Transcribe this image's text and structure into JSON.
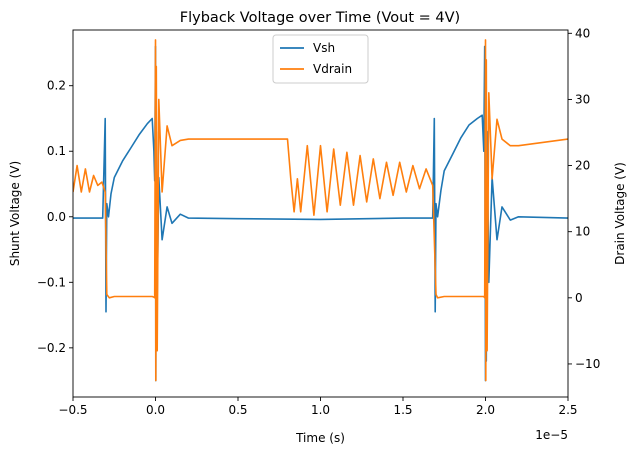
{
  "chart_data": {
    "type": "line",
    "title": "Flyback Voltage over Time (Vout = 4V)",
    "xlabel": "Time (s)",
    "x_offset_label": "1e−5",
    "xlim": [
      -5e-06,
      2.5e-05
    ],
    "x_ticks": [
      -5e-06,
      0,
      5e-06,
      1e-05,
      1.5e-05,
      2e-05,
      2.5e-05
    ],
    "x_tick_labels": [
      "−0.5",
      "0.0",
      "0.5",
      "1.0",
      "1.5",
      "2.0",
      "2.5"
    ],
    "y_left": {
      "label": "Shunt Voltage (V)",
      "lim": [
        -0.275,
        0.285
      ],
      "ticks": [
        -0.2,
        -0.1,
        0.0,
        0.1,
        0.2
      ],
      "tick_labels": [
        "−0.2",
        "−0.1",
        "0.0",
        "0.1",
        "0.2"
      ]
    },
    "y_right": {
      "label": "Drain Voltage (V)",
      "lim": [
        -15,
        40.5
      ],
      "ticks": [
        -10,
        0,
        10,
        20,
        30,
        40
      ],
      "tick_labels": [
        "−10",
        "0",
        "10",
        "20",
        "30",
        "40"
      ]
    },
    "grid": false,
    "legend_position": "top-center",
    "series": [
      {
        "name": "Vsh",
        "axis": "left",
        "color": "#1f77b4",
        "x": [
          -5e-06,
          -3.2e-06,
          -3.05e-06,
          -3e-06,
          -2.95e-06,
          -2.85e-06,
          -2.7e-06,
          -2.5e-06,
          -2e-06,
          -1.5e-06,
          -1e-06,
          -5e-07,
          -2e-07,
          -1e-07,
          -5e-08,
          0,
          2e-08,
          5e-08,
          1e-07,
          2e-07,
          4e-07,
          7e-07,
          1e-06,
          1.5e-06,
          2e-06,
          5e-06,
          1e-05,
          1.5e-05,
          1.68e-05,
          1.69e-05,
          1.695e-05,
          1.7e-05,
          1.71e-05,
          1.73e-05,
          1.75e-05,
          1.8e-05,
          1.85e-05,
          1.9e-05,
          1.95e-05,
          1.98e-05,
          1.99e-05,
          1.995e-05,
          2e-05,
          2.002e-05,
          2.005e-05,
          2.01e-05,
          2.02e-05,
          2.04e-05,
          2.07e-05,
          2.1e-05,
          2.15e-05,
          2.2e-05,
          2.5e-05
        ],
        "y": [
          -0.002,
          -0.002,
          0.15,
          -0.145,
          0.02,
          0.0,
          0.035,
          0.06,
          0.085,
          0.105,
          0.125,
          0.142,
          0.15,
          0.1,
          0.055,
          0.26,
          -0.25,
          0.13,
          -0.12,
          0.06,
          -0.035,
          0.015,
          -0.01,
          0.004,
          -0.002,
          -0.003,
          -0.004,
          -0.002,
          -0.002,
          0.15,
          -0.145,
          0.02,
          0.0,
          0.04,
          0.07,
          0.095,
          0.12,
          0.14,
          0.15,
          0.155,
          0.1,
          0.26,
          -0.25,
          0.2,
          -0.22,
          0.13,
          -0.1,
          0.06,
          -0.035,
          0.015,
          -0.005,
          0.0,
          -0.002
        ]
      },
      {
        "name": "Vdrain",
        "axis": "right",
        "color": "#ff7f0e",
        "x": [
          -5e-06,
          -4.75e-06,
          -4.5e-06,
          -4.25e-06,
          -4e-06,
          -3.75e-06,
          -3.5e-06,
          -3.25e-06,
          -3.05e-06,
          -2.95e-06,
          -2.8e-06,
          -2.5e-06,
          -1e-06,
          -2e-07,
          -1e-07,
          -5e-08,
          0,
          2e-08,
          5e-08,
          1e-07,
          2e-07,
          4e-07,
          7e-07,
          1e-06,
          1.5e-06,
          2e-06,
          5e-06,
          8e-06,
          8.2e-06,
          8.4e-06,
          8.6e-06,
          8.8e-06,
          9.2e-06,
          9.6e-06,
          1e-05,
          1.04e-05,
          1.08e-05,
          1.12e-05,
          1.16e-05,
          1.2e-05,
          1.24e-05,
          1.28e-05,
          1.32e-05,
          1.36e-05,
          1.4e-05,
          1.44e-05,
          1.48e-05,
          1.52e-05,
          1.56e-05,
          1.6e-05,
          1.64e-05,
          1.68e-05,
          1.7e-05,
          1.71e-05,
          1.75e-05,
          1.8e-05,
          1.95e-05,
          1.99e-05,
          1.995e-05,
          2e-05,
          2.002e-05,
          2.005e-05,
          2.01e-05,
          2.02e-05,
          2.04e-05,
          2.07e-05,
          2.1e-05,
          2.15e-05,
          2.2e-05,
          2.5e-05
        ],
        "y": [
          16,
          20,
          16,
          19.5,
          16,
          18.5,
          17,
          17.5,
          16,
          0.5,
          0,
          0.2,
          0.2,
          0.2,
          0.1,
          0,
          39,
          -12.5,
          35,
          -8,
          30,
          16,
          26,
          23,
          23.8,
          24,
          24,
          24,
          18,
          13,
          18,
          13,
          23,
          12.5,
          23,
          13,
          22.5,
          14,
          22,
          14,
          21.5,
          14.5,
          21,
          15,
          20.5,
          15.5,
          20.5,
          16,
          20,
          16.5,
          19.5,
          17,
          0.5,
          0,
          0.2,
          0.2,
          0.2,
          0.2,
          0,
          39,
          -12.5,
          36,
          -8,
          31,
          18,
          27,
          24,
          23,
          23,
          24
        ]
      }
    ]
  }
}
